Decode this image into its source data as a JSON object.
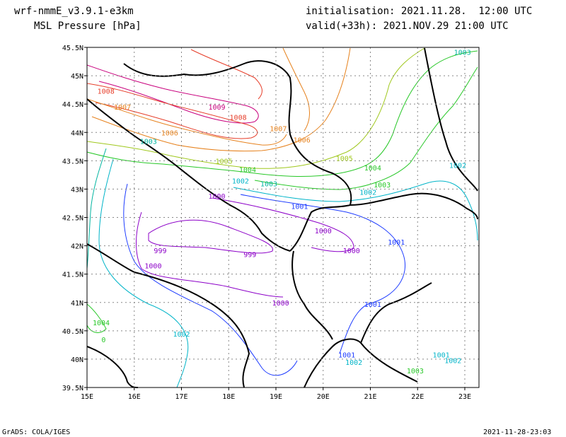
{
  "header": {
    "model": "wrf-nmmE_v3.9.1-e3km",
    "field": "MSL Pressure [hPa]",
    "init": "initialisation: 2021.11.28.  12:00 UTC",
    "valid": "valid(+33h): 2021.NOV.29 21:00 UTC"
  },
  "map": {
    "lon_labels": [
      "15E",
      "16E",
      "17E",
      "18E",
      "19E",
      "20E",
      "21E",
      "22E",
      "23E"
    ],
    "lat_labels": [
      "45.5N",
      "45N",
      "44.5N",
      "44N",
      "43.5N",
      "43N",
      "42.5N",
      "42N",
      "41.5N",
      "41N",
      "40.5N",
      "40N",
      "39.5N"
    ],
    "lon_range": [
      15,
      23.3
    ],
    "lat_range": [
      39.5,
      45.5
    ],
    "isobar_labels": [
      {
        "text": "1003",
        "color": "#00b4a0",
        "lon": 22.95,
        "lat": 45.42
      },
      {
        "text": "1008",
        "color": "#e63c28",
        "lon": 15.4,
        "lat": 44.73
      },
      {
        "text": "1007",
        "color": "#e6821e",
        "lon": 15.75,
        "lat": 44.45
      },
      {
        "text": "1009",
        "color": "#c8007d",
        "lon": 17.75,
        "lat": 44.45
      },
      {
        "text": "1008",
        "color": "#e63c28",
        "lon": 18.2,
        "lat": 44.27
      },
      {
        "text": "1007",
        "color": "#e6821e",
        "lon": 19.05,
        "lat": 44.07
      },
      {
        "text": "1006",
        "color": "#e6821e",
        "lon": 16.75,
        "lat": 44.0
      },
      {
        "text": "1006",
        "color": "#e6821e",
        "lon": 19.55,
        "lat": 43.87
      },
      {
        "text": "1003",
        "color": "#00b4a0",
        "lon": 16.3,
        "lat": 43.85
      },
      {
        "text": "1005",
        "color": "#a0c81e",
        "lon": 17.9,
        "lat": 43.5
      },
      {
        "text": "1005",
        "color": "#a0c81e",
        "lon": 20.45,
        "lat": 43.55
      },
      {
        "text": "1004",
        "color": "#28c828",
        "lon": 18.4,
        "lat": 43.35
      },
      {
        "text": "1004",
        "color": "#28c828",
        "lon": 21.05,
        "lat": 43.38
      },
      {
        "text": "1002",
        "color": "#00b4c8",
        "lon": 22.85,
        "lat": 43.42
      },
      {
        "text": "1002",
        "color": "#00b4c8",
        "lon": 18.25,
        "lat": 43.15
      },
      {
        "text": "1003",
        "color": "#00b4a0",
        "lon": 18.85,
        "lat": 43.1
      },
      {
        "text": "1003",
        "color": "#28c828",
        "lon": 21.25,
        "lat": 43.08
      },
      {
        "text": "1002",
        "color": "#00b4c8",
        "lon": 20.95,
        "lat": 42.95
      },
      {
        "text": "1000",
        "color": "#8c00c8",
        "lon": 17.75,
        "lat": 42.88
      },
      {
        "text": "1001",
        "color": "#1e3cff",
        "lon": 19.5,
        "lat": 42.7
      },
      {
        "text": "1000",
        "color": "#8c00c8",
        "lon": 20.0,
        "lat": 42.27
      },
      {
        "text": "1001",
        "color": "#1e3cff",
        "lon": 21.55,
        "lat": 42.07
      },
      {
        "text": "1000",
        "color": "#8c00c8",
        "lon": 20.6,
        "lat": 41.92
      },
      {
        "text": "999",
        "color": "#8c00c8",
        "lon": 16.55,
        "lat": 41.92
      },
      {
        "text": "999",
        "color": "#8c00c8",
        "lon": 18.45,
        "lat": 41.85
      },
      {
        "text": "1000",
        "color": "#8c00c8",
        "lon": 16.4,
        "lat": 41.65
      },
      {
        "text": "1000",
        "color": "#8c00c8",
        "lon": 19.1,
        "lat": 41.0
      },
      {
        "text": "1001",
        "color": "#1e3cff",
        "lon": 21.05,
        "lat": 40.97
      },
      {
        "text": "1004",
        "color": "#28c828",
        "lon": 15.3,
        "lat": 40.65
      },
      {
        "text": "1002",
        "color": "#00b4c8",
        "lon": 17.0,
        "lat": 40.45
      },
      {
        "text": "1002",
        "color": "#00b4c8",
        "lon": 20.65,
        "lat": 39.95
      },
      {
        "text": "1001",
        "color": "#1e3cff",
        "lon": 20.5,
        "lat": 40.08
      },
      {
        "text": "1001",
        "color": "#00b4c8",
        "lon": 22.5,
        "lat": 40.08
      },
      {
        "text": "1002",
        "color": "#00b4c8",
        "lon": 22.75,
        "lat": 39.98
      },
      {
        "text": "1003",
        "color": "#28c828",
        "lon": 21.95,
        "lat": 39.8
      },
      {
        "text": "0",
        "color": "#28c828",
        "lon": 15.35,
        "lat": 40.35
      }
    ]
  },
  "footer": {
    "left": "GrADS: COLA/IGES",
    "right": "2021-11-28-23:03"
  }
}
